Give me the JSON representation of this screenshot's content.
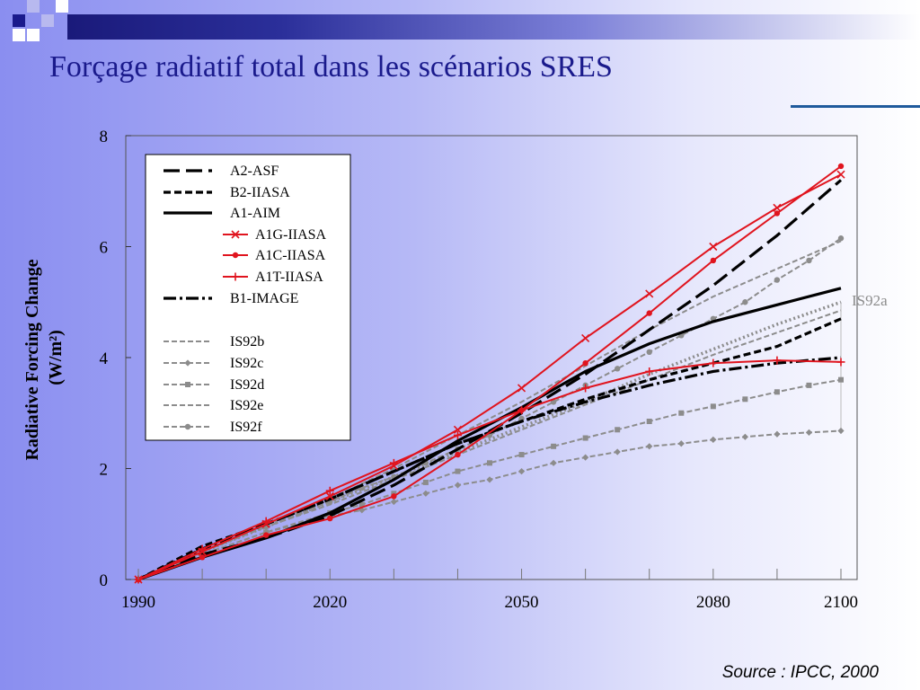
{
  "slide": {
    "title": "Forçage radiatif total dans les scénarios SRES",
    "source": "Source : IPCC, 2000"
  },
  "colors": {
    "navy": "#1a1a8c",
    "red": "#e0141e",
    "black": "#000000",
    "gray": "#8c8c8c"
  },
  "chart_data": {
    "type": "line",
    "ylabel": "Radiative Forcing Change (W/m²)",
    "xlabel": "",
    "xlim": [
      1990,
      2100
    ],
    "ylim": [
      0,
      8
    ],
    "x_ticks": [
      1990,
      2020,
      2050,
      2080,
      2100
    ],
    "y_ticks": [
      0,
      2,
      4,
      6,
      8
    ],
    "grid": false,
    "legend": "top-left",
    "annotation": "IS92a",
    "series": [
      {
        "name": "A2-ASF",
        "color": "#000000",
        "dash": "18,7",
        "width": 3.2,
        "marker": "none",
        "points": [
          [
            1990,
            0
          ],
          [
            2000,
            0.45
          ],
          [
            2010,
            0.75
          ],
          [
            2020,
            1.15
          ],
          [
            2030,
            1.7
          ],
          [
            2040,
            2.35
          ],
          [
            2050,
            3.0
          ],
          [
            2060,
            3.7
          ],
          [
            2070,
            4.5
          ],
          [
            2080,
            5.3
          ],
          [
            2090,
            6.2
          ],
          [
            2100,
            7.2
          ]
        ]
      },
      {
        "name": "B2-IIASA",
        "color": "#000000",
        "dash": "8,4",
        "width": 3.2,
        "marker": "none",
        "points": [
          [
            1990,
            0
          ],
          [
            2000,
            0.6
          ],
          [
            2010,
            1.0
          ],
          [
            2020,
            1.45
          ],
          [
            2030,
            1.95
          ],
          [
            2040,
            2.45
          ],
          [
            2050,
            2.85
          ],
          [
            2060,
            3.25
          ],
          [
            2070,
            3.6
          ],
          [
            2080,
            3.9
          ],
          [
            2090,
            4.2
          ],
          [
            2100,
            4.7
          ]
        ]
      },
      {
        "name": "A1-AIM",
        "color": "#000000",
        "dash": "",
        "width": 3.2,
        "marker": "none",
        "points": [
          [
            1990,
            0
          ],
          [
            2000,
            0.4
          ],
          [
            2010,
            0.75
          ],
          [
            2020,
            1.2
          ],
          [
            2030,
            1.8
          ],
          [
            2040,
            2.5
          ],
          [
            2050,
            3.1
          ],
          [
            2060,
            3.75
          ],
          [
            2070,
            4.25
          ],
          [
            2080,
            4.65
          ],
          [
            2090,
            4.95
          ],
          [
            2100,
            5.25
          ]
        ]
      },
      {
        "name": "A1G-IIASA",
        "color": "#e0141e",
        "dash": "",
        "width": 2,
        "marker": "x",
        "points": [
          [
            1990,
            0
          ],
          [
            2000,
            0.5
          ],
          [
            2010,
            1.0
          ],
          [
            2020,
            1.5
          ],
          [
            2030,
            2.05
          ],
          [
            2040,
            2.7
          ],
          [
            2050,
            3.45
          ],
          [
            2060,
            4.35
          ],
          [
            2070,
            5.15
          ],
          [
            2080,
            6.0
          ],
          [
            2090,
            6.7
          ],
          [
            2100,
            7.3
          ]
        ]
      },
      {
        "name": "A1C-IIASA",
        "color": "#e0141e",
        "dash": "",
        "width": 2,
        "marker": "dot",
        "points": [
          [
            1990,
            0
          ],
          [
            2000,
            0.4
          ],
          [
            2010,
            0.8
          ],
          [
            2020,
            1.1
          ],
          [
            2030,
            1.5
          ],
          [
            2040,
            2.25
          ],
          [
            2050,
            3.05
          ],
          [
            2060,
            3.9
          ],
          [
            2070,
            4.8
          ],
          [
            2080,
            5.75
          ],
          [
            2090,
            6.6
          ],
          [
            2100,
            7.45
          ]
        ]
      },
      {
        "name": "A1T-IIASA",
        "color": "#e0141e",
        "dash": "",
        "width": 2,
        "marker": "plus",
        "points": [
          [
            1990,
            0
          ],
          [
            2000,
            0.55
          ],
          [
            2010,
            1.05
          ],
          [
            2020,
            1.6
          ],
          [
            2030,
            2.1
          ],
          [
            2040,
            2.6
          ],
          [
            2050,
            3.05
          ],
          [
            2060,
            3.45
          ],
          [
            2070,
            3.75
          ],
          [
            2080,
            3.9
          ],
          [
            2090,
            3.95
          ],
          [
            2100,
            3.92
          ]
        ]
      },
      {
        "name": "B1-IMAGE",
        "color": "#000000",
        "dash": "14,4,3,4",
        "width": 3.2,
        "marker": "none",
        "points": [
          [
            1990,
            0
          ],
          [
            2000,
            0.55
          ],
          [
            2010,
            1.0
          ],
          [
            2020,
            1.45
          ],
          [
            2030,
            1.95
          ],
          [
            2040,
            2.45
          ],
          [
            2050,
            2.85
          ],
          [
            2060,
            3.2
          ],
          [
            2070,
            3.5
          ],
          [
            2080,
            3.75
          ],
          [
            2090,
            3.9
          ],
          [
            2100,
            4.0
          ]
        ]
      },
      {
        "name": "IS92a",
        "color": "#8c8c8c",
        "dash": "2,3",
        "width": 3.5,
        "marker": "none",
        "points": [
          [
            1990,
            0
          ],
          [
            2000,
            0.5
          ],
          [
            2010,
            0.95
          ],
          [
            2020,
            1.4
          ],
          [
            2030,
            1.85
          ],
          [
            2040,
            2.3
          ],
          [
            2050,
            2.75
          ],
          [
            2060,
            3.2
          ],
          [
            2070,
            3.7
          ],
          [
            2080,
            4.15
          ],
          [
            2090,
            4.6
          ],
          [
            2100,
            5.0
          ]
        ]
      },
      {
        "name": "IS92b",
        "color": "#8c8c8c",
        "dash": "6,3",
        "width": 2,
        "marker": "none",
        "points": [
          [
            1990,
            0
          ],
          [
            2000,
            0.5
          ],
          [
            2010,
            0.95
          ],
          [
            2020,
            1.35
          ],
          [
            2030,
            1.8
          ],
          [
            2040,
            2.25
          ],
          [
            2050,
            2.7
          ],
          [
            2060,
            3.15
          ],
          [
            2070,
            3.6
          ],
          [
            2080,
            4.05
          ],
          [
            2090,
            4.45
          ],
          [
            2100,
            4.85
          ]
        ]
      },
      {
        "name": "IS92c",
        "color": "#8c8c8c",
        "dash": "6,3",
        "width": 2,
        "marker": "diamond",
        "points": [
          [
            1990,
            0
          ],
          [
            2000,
            0.45
          ],
          [
            2010,
            0.85
          ],
          [
            2020,
            1.15
          ],
          [
            2025,
            1.25
          ],
          [
            2030,
            1.4
          ],
          [
            2035,
            1.55
          ],
          [
            2040,
            1.7
          ],
          [
            2045,
            1.8
          ],
          [
            2050,
            1.95
          ],
          [
            2055,
            2.1
          ],
          [
            2060,
            2.2
          ],
          [
            2065,
            2.3
          ],
          [
            2070,
            2.4
          ],
          [
            2075,
            2.45
          ],
          [
            2080,
            2.52
          ],
          [
            2085,
            2.57
          ],
          [
            2090,
            2.62
          ],
          [
            2095,
            2.65
          ],
          [
            2100,
            2.68
          ]
        ]
      },
      {
        "name": "IS92d",
        "color": "#8c8c8c",
        "dash": "6,3",
        "width": 2,
        "marker": "square",
        "points": [
          [
            1990,
            0
          ],
          [
            2000,
            0.45
          ],
          [
            2010,
            0.85
          ],
          [
            2020,
            1.2
          ],
          [
            2025,
            1.35
          ],
          [
            2030,
            1.55
          ],
          [
            2035,
            1.75
          ],
          [
            2040,
            1.95
          ],
          [
            2045,
            2.1
          ],
          [
            2050,
            2.25
          ],
          [
            2055,
            2.4
          ],
          [
            2060,
            2.55
          ],
          [
            2065,
            2.7
          ],
          [
            2070,
            2.85
          ],
          [
            2075,
            3.0
          ],
          [
            2080,
            3.12
          ],
          [
            2085,
            3.25
          ],
          [
            2090,
            3.38
          ],
          [
            2095,
            3.5
          ],
          [
            2100,
            3.6
          ]
        ]
      },
      {
        "name": "IS92e",
        "color": "#8c8c8c",
        "dash": "6,3",
        "width": 2,
        "marker": "none",
        "points": [
          [
            1990,
            0
          ],
          [
            2000,
            0.5
          ],
          [
            2010,
            1.0
          ],
          [
            2020,
            1.45
          ],
          [
            2030,
            2.0
          ],
          [
            2040,
            2.6
          ],
          [
            2050,
            3.2
          ],
          [
            2060,
            3.85
          ],
          [
            2070,
            4.5
          ],
          [
            2080,
            5.1
          ],
          [
            2090,
            5.6
          ],
          [
            2100,
            6.1
          ]
        ]
      },
      {
        "name": "IS92f",
        "color": "#8c8c8c",
        "dash": "6,3",
        "width": 2,
        "marker": "dot",
        "points": [
          [
            1990,
            0
          ],
          [
            2000,
            0.5
          ],
          [
            2010,
            0.95
          ],
          [
            2020,
            1.4
          ],
          [
            2025,
            1.65
          ],
          [
            2030,
            1.85
          ],
          [
            2035,
            2.1
          ],
          [
            2040,
            2.35
          ],
          [
            2045,
            2.6
          ],
          [
            2050,
            2.9
          ],
          [
            2055,
            3.2
          ],
          [
            2060,
            3.5
          ],
          [
            2065,
            3.8
          ],
          [
            2070,
            4.1
          ],
          [
            2075,
            4.4
          ],
          [
            2080,
            4.7
          ],
          [
            2085,
            5.0
          ],
          [
            2090,
            5.4
          ],
          [
            2095,
            5.75
          ],
          [
            2100,
            6.15
          ]
        ]
      }
    ]
  }
}
